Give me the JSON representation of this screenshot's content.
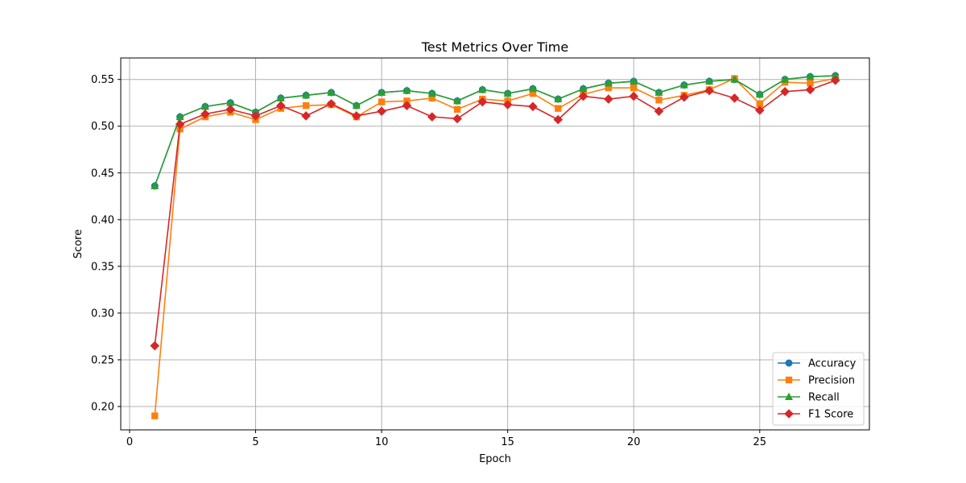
{
  "chart_data": {
    "type": "line",
    "title": "Test Metrics Over Time",
    "xlabel": "Epoch",
    "ylabel": "Score",
    "xlim": [
      -0.35,
      29.35
    ],
    "ylim": [
      0.175,
      0.573
    ],
    "xticks": [
      0,
      5,
      10,
      15,
      20,
      25
    ],
    "yticks": [
      0.2,
      0.25,
      0.3,
      0.35,
      0.4,
      0.45,
      0.5,
      0.55
    ],
    "grid": true,
    "legend_position": "lower right",
    "x": [
      1,
      2,
      3,
      4,
      5,
      6,
      7,
      8,
      9,
      10,
      11,
      12,
      13,
      14,
      15,
      16,
      17,
      18,
      19,
      20,
      21,
      22,
      23,
      24,
      25,
      26,
      27,
      28
    ],
    "series": [
      {
        "name": "Accuracy",
        "color": "#1f77b4",
        "marker": "circle",
        "values": [
          0.436,
          0.51,
          0.521,
          0.525,
          0.515,
          0.53,
          0.533,
          0.536,
          0.522,
          0.536,
          0.538,
          0.535,
          0.527,
          0.539,
          0.535,
          0.54,
          0.529,
          0.54,
          0.546,
          0.548,
          0.536,
          0.544,
          0.548,
          0.55,
          0.534,
          0.55,
          0.553,
          0.554
        ]
      },
      {
        "name": "Precision",
        "color": "#ff7f0e",
        "marker": "square",
        "values": [
          0.19,
          0.497,
          0.51,
          0.515,
          0.507,
          0.519,
          0.522,
          0.523,
          0.51,
          0.526,
          0.527,
          0.53,
          0.518,
          0.529,
          0.527,
          0.535,
          0.519,
          0.534,
          0.541,
          0.541,
          0.528,
          0.533,
          0.539,
          0.551,
          0.524,
          0.547,
          0.546,
          0.551
        ]
      },
      {
        "name": "Recall",
        "color": "#2ca02c",
        "marker": "triangle",
        "values": [
          0.436,
          0.51,
          0.521,
          0.525,
          0.515,
          0.53,
          0.533,
          0.536,
          0.522,
          0.536,
          0.538,
          0.535,
          0.527,
          0.539,
          0.535,
          0.54,
          0.529,
          0.54,
          0.546,
          0.548,
          0.536,
          0.544,
          0.548,
          0.55,
          0.534,
          0.55,
          0.553,
          0.554
        ]
      },
      {
        "name": "F1 Score",
        "color": "#d62728",
        "marker": "diamond",
        "values": [
          0.265,
          0.502,
          0.513,
          0.518,
          0.511,
          0.522,
          0.511,
          0.524,
          0.511,
          0.516,
          0.522,
          0.51,
          0.508,
          0.526,
          0.523,
          0.521,
          0.507,
          0.532,
          0.529,
          0.532,
          0.516,
          0.531,
          0.538,
          0.53,
          0.517,
          0.537,
          0.539,
          0.549
        ]
      }
    ]
  }
}
